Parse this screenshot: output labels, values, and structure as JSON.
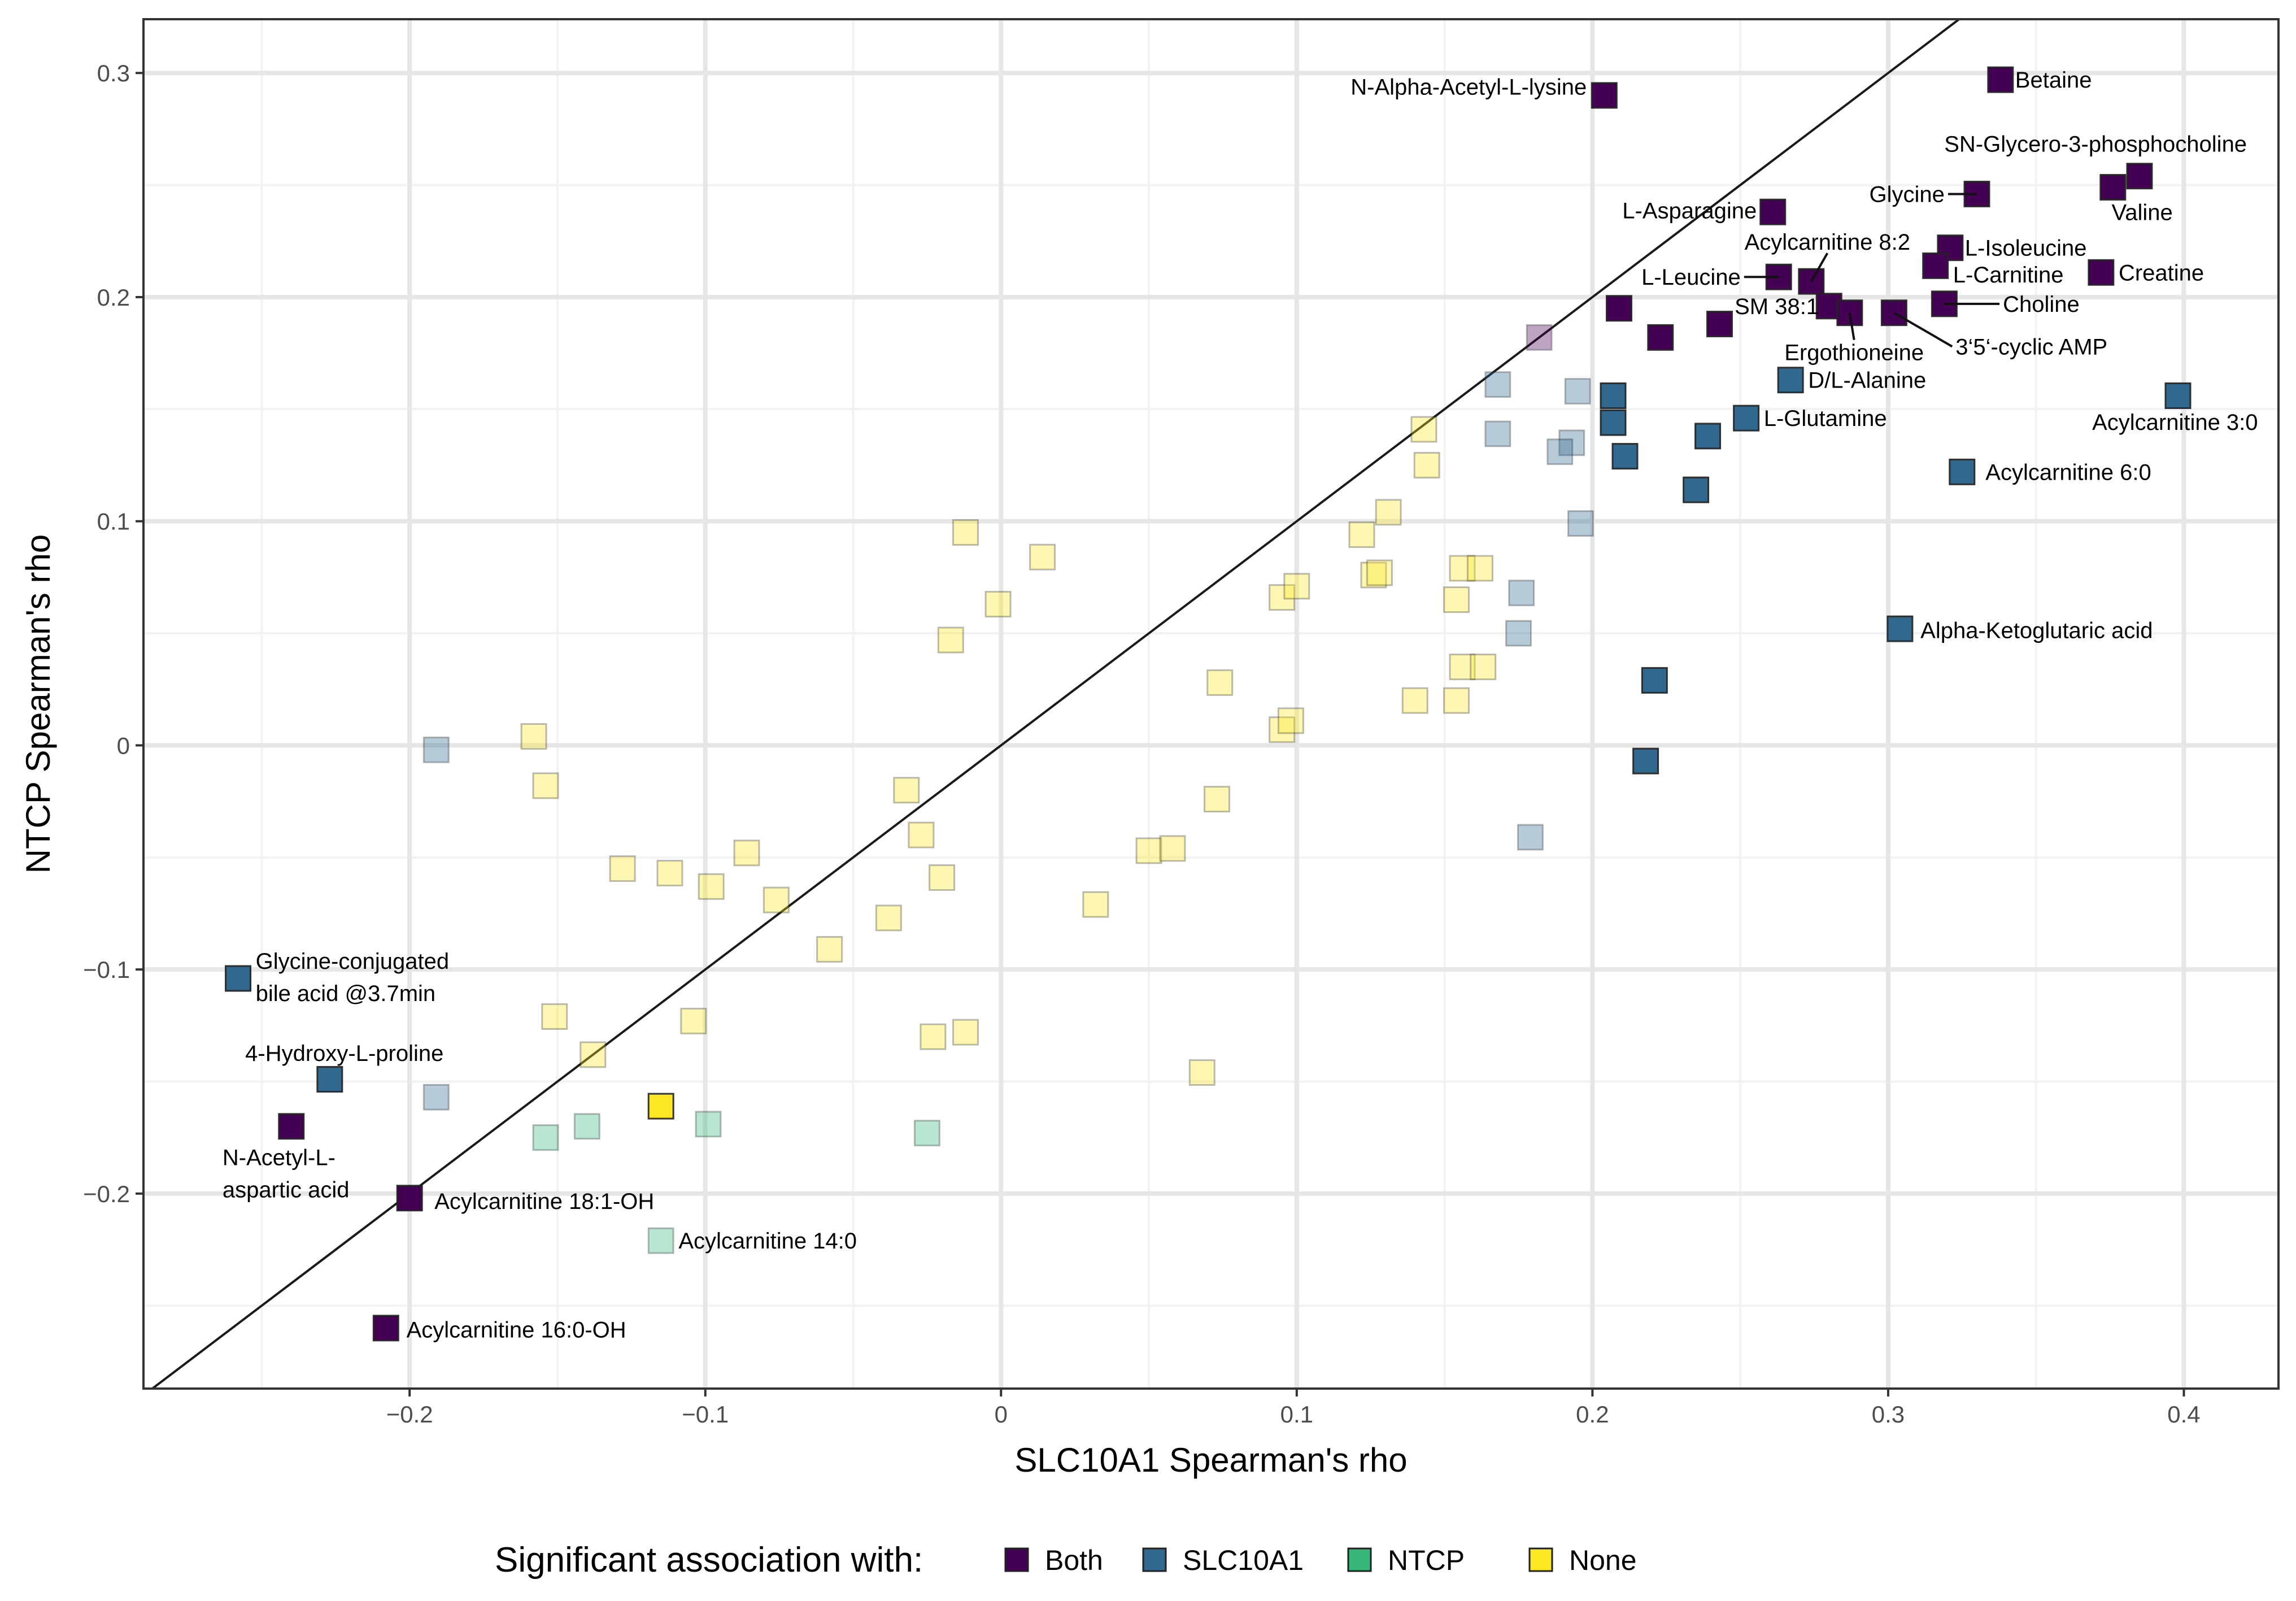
{
  "chart_data": {
    "type": "scatter",
    "title": "",
    "xlabel": "SLC10A1 Spearman's rho",
    "ylabel": "NTCP Spearman's rho",
    "xlim": [
      -0.29,
      0.432
    ],
    "ylim": [
      -0.287,
      0.324
    ],
    "x_ticks": [
      -0.2,
      -0.1,
      0,
      0.1,
      0.2,
      0.3,
      0.4
    ],
    "x_tick_labels": [
      "−0.2",
      "−0.1",
      "0",
      "0.1",
      "0.2",
      "0.3",
      "0.4"
    ],
    "y_ticks": [
      -0.2,
      -0.1,
      0,
      0.1,
      0.2,
      0.3
    ],
    "y_tick_labels": [
      "−0.2",
      "−0.1",
      "0",
      "0.1",
      "0.2",
      "0.3"
    ],
    "grid": true,
    "reference_line": "y = x",
    "legend": {
      "title": "Significant association with:",
      "placement": "bottom",
      "entries": [
        {
          "name": "Both",
          "color": "#440154"
        },
        {
          "name": "SLC10A1",
          "color": "#31688e"
        },
        {
          "name": "NTCP",
          "color": "#35b779"
        },
        {
          "name": "None",
          "color": "#fde725"
        }
      ]
    },
    "points": [
      {
        "x": 0.338,
        "y": 0.297,
        "group": "Both",
        "highlighted": true,
        "label": [
          "Betaine"
        ]
      },
      {
        "x": 0.204,
        "y": 0.29,
        "group": "Both",
        "highlighted": true,
        "label": [
          "N-Alpha-Acetyl-L-lysine"
        ]
      },
      {
        "x": 0.385,
        "y": 0.254,
        "group": "Both",
        "highlighted": true,
        "label": [
          "SN-Glycero-3-phosphocholine"
        ]
      },
      {
        "x": 0.376,
        "y": 0.249,
        "group": "Both",
        "highlighted": true,
        "label": [
          "Valine"
        ]
      },
      {
        "x": 0.33,
        "y": 0.246,
        "group": "Both",
        "highlighted": true,
        "label": [
          "Glycine"
        ]
      },
      {
        "x": 0.261,
        "y": 0.238,
        "group": "Both",
        "highlighted": true,
        "label": [
          "L-Asparagine"
        ]
      },
      {
        "x": 0.321,
        "y": 0.222,
        "group": "Both",
        "highlighted": true,
        "label": [
          "L-Isoleucine"
        ]
      },
      {
        "x": 0.316,
        "y": 0.214,
        "group": "Both",
        "highlighted": true,
        "label": [
          "L-Carnitine"
        ]
      },
      {
        "x": 0.372,
        "y": 0.211,
        "group": "Both",
        "highlighted": true,
        "label": [
          "Creatine"
        ]
      },
      {
        "x": 0.263,
        "y": 0.209,
        "group": "Both",
        "highlighted": true,
        "label": [
          "L-Leucine"
        ]
      },
      {
        "x": 0.274,
        "y": 0.207,
        "group": "Both",
        "highlighted": true,
        "label": [
          "Acylcarnitine 8:2"
        ]
      },
      {
        "x": 0.319,
        "y": 0.197,
        "group": "Both",
        "highlighted": true,
        "label": [
          "Choline"
        ]
      },
      {
        "x": 0.28,
        "y": 0.196,
        "group": "Both",
        "highlighted": true,
        "label": [
          "SM 38:1"
        ]
      },
      {
        "x": 0.287,
        "y": 0.193,
        "group": "Both",
        "highlighted": true,
        "label": [
          "Ergothioneine"
        ]
      },
      {
        "x": 0.302,
        "y": 0.193,
        "group": "Both",
        "highlighted": true,
        "label": [
          "3‘5‘-cyclic AMP"
        ]
      },
      {
        "x": 0.209,
        "y": 0.195,
        "group": "Both",
        "highlighted": true,
        "label": []
      },
      {
        "x": 0.223,
        "y": 0.182,
        "group": "Both",
        "highlighted": true,
        "label": []
      },
      {
        "x": 0.243,
        "y": 0.188,
        "group": "Both",
        "highlighted": true,
        "label": []
      },
      {
        "x": 0.182,
        "y": 0.182,
        "group": "Both",
        "highlighted": false,
        "label": []
      },
      {
        "x": -0.24,
        "y": -0.17,
        "group": "Both",
        "highlighted": true,
        "label": [
          "N-Acetyl-L-",
          "aspartic acid"
        ]
      },
      {
        "x": -0.2,
        "y": -0.202,
        "group": "Both",
        "highlighted": true,
        "label": [
          "Acylcarnitine 18:1-OH"
        ]
      },
      {
        "x": -0.208,
        "y": -0.26,
        "group": "Both",
        "highlighted": true,
        "label": [
          "Acylcarnitine 16:0-OH"
        ]
      },
      {
        "x": 0.267,
        "y": 0.163,
        "group": "SLC10A1",
        "highlighted": true,
        "label": [
          "D/L-Alanine"
        ]
      },
      {
        "x": 0.252,
        "y": 0.146,
        "group": "SLC10A1",
        "highlighted": true,
        "label": [
          "L-Glutamine"
        ]
      },
      {
        "x": 0.398,
        "y": 0.156,
        "group": "SLC10A1",
        "highlighted": true,
        "label": [
          "Acylcarnitine 3:0"
        ]
      },
      {
        "x": 0.325,
        "y": 0.122,
        "group": "SLC10A1",
        "highlighted": true,
        "label": [
          "Acylcarnitine 6:0"
        ]
      },
      {
        "x": 0.304,
        "y": 0.052,
        "group": "SLC10A1",
        "highlighted": true,
        "label": [
          "Alpha-Ketoglutaric acid"
        ]
      },
      {
        "x": -0.258,
        "y": -0.104,
        "group": "SLC10A1",
        "highlighted": true,
        "label": [
          "Glycine-conjugated",
          "bile acid @3.7min"
        ]
      },
      {
        "x": -0.227,
        "y": -0.149,
        "group": "SLC10A1",
        "highlighted": true,
        "label": [
          "4-Hydroxy-L-proline"
        ]
      },
      {
        "x": 0.207,
        "y": 0.156,
        "group": "SLC10A1",
        "highlighted": true,
        "label": []
      },
      {
        "x": 0.207,
        "y": 0.144,
        "group": "SLC10A1",
        "highlighted": true,
        "label": []
      },
      {
        "x": 0.211,
        "y": 0.129,
        "group": "SLC10A1",
        "highlighted": true,
        "label": []
      },
      {
        "x": 0.239,
        "y": 0.138,
        "group": "SLC10A1",
        "highlighted": true,
        "label": []
      },
      {
        "x": 0.235,
        "y": 0.114,
        "group": "SLC10A1",
        "highlighted": true,
        "label": []
      },
      {
        "x": 0.221,
        "y": 0.029,
        "group": "SLC10A1",
        "highlighted": true,
        "label": []
      },
      {
        "x": 0.218,
        "y": -0.007,
        "group": "SLC10A1",
        "highlighted": true,
        "label": []
      },
      {
        "x": 0.168,
        "y": 0.161,
        "group": "SLC10A1",
        "highlighted": false,
        "label": []
      },
      {
        "x": 0.195,
        "y": 0.158,
        "group": "SLC10A1",
        "highlighted": false,
        "label": []
      },
      {
        "x": 0.168,
        "y": 0.139,
        "group": "SLC10A1",
        "highlighted": false,
        "label": []
      },
      {
        "x": 0.193,
        "y": 0.135,
        "group": "SLC10A1",
        "highlighted": false,
        "label": []
      },
      {
        "x": 0.189,
        "y": 0.131,
        "group": "SLC10A1",
        "highlighted": false,
        "label": []
      },
      {
        "x": 0.196,
        "y": 0.099,
        "group": "SLC10A1",
        "highlighted": false,
        "label": []
      },
      {
        "x": 0.176,
        "y": 0.068,
        "group": "SLC10A1",
        "highlighted": false,
        "label": []
      },
      {
        "x": 0.175,
        "y": 0.05,
        "group": "SLC10A1",
        "highlighted": false,
        "label": []
      },
      {
        "x": 0.179,
        "y": -0.041,
        "group": "SLC10A1",
        "highlighted": false,
        "label": []
      },
      {
        "x": -0.191,
        "y": -0.002,
        "group": "SLC10A1",
        "highlighted": false,
        "label": []
      },
      {
        "x": -0.191,
        "y": -0.157,
        "group": "SLC10A1",
        "highlighted": false,
        "label": []
      },
      {
        "x": -0.154,
        "y": -0.175,
        "group": "NTCP",
        "highlighted": false,
        "label": []
      },
      {
        "x": -0.14,
        "y": -0.17,
        "group": "NTCP",
        "highlighted": false,
        "label": []
      },
      {
        "x": -0.099,
        "y": -0.169,
        "group": "NTCP",
        "highlighted": false,
        "label": []
      },
      {
        "x": -0.025,
        "y": -0.173,
        "group": "NTCP",
        "highlighted": false,
        "label": []
      },
      {
        "x": -0.115,
        "y": -0.221,
        "group": "NTCP",
        "highlighted": false,
        "label": [
          "Acylcarnitine 14:0"
        ]
      },
      {
        "x": -0.115,
        "y": -0.161,
        "group": "None",
        "highlighted": true,
        "label": []
      },
      {
        "x": -0.158,
        "y": 0.004,
        "group": "None",
        "highlighted": false,
        "label": []
      },
      {
        "x": -0.154,
        "y": -0.018,
        "group": "None",
        "highlighted": false,
        "label": []
      },
      {
        "x": -0.128,
        "y": -0.055,
        "group": "None",
        "highlighted": false,
        "label": []
      },
      {
        "x": -0.112,
        "y": -0.057,
        "group": "None",
        "highlighted": false,
        "label": []
      },
      {
        "x": -0.098,
        "y": -0.063,
        "group": "None",
        "highlighted": false,
        "label": []
      },
      {
        "x": -0.086,
        "y": -0.048,
        "group": "None",
        "highlighted": false,
        "label": []
      },
      {
        "x": -0.076,
        "y": -0.069,
        "group": "None",
        "highlighted": false,
        "label": []
      },
      {
        "x": -0.058,
        "y": -0.091,
        "group": "None",
        "highlighted": false,
        "label": []
      },
      {
        "x": -0.038,
        "y": -0.077,
        "group": "None",
        "highlighted": false,
        "label": []
      },
      {
        "x": -0.032,
        "y": -0.02,
        "group": "None",
        "highlighted": false,
        "label": []
      },
      {
        "x": -0.027,
        "y": -0.04,
        "group": "None",
        "highlighted": false,
        "label": []
      },
      {
        "x": -0.02,
        "y": -0.059,
        "group": "None",
        "highlighted": false,
        "label": []
      },
      {
        "x": -0.151,
        "y": -0.121,
        "group": "None",
        "highlighted": false,
        "label": []
      },
      {
        "x": -0.138,
        "y": -0.138,
        "group": "None",
        "highlighted": false,
        "label": []
      },
      {
        "x": -0.104,
        "y": -0.123,
        "group": "None",
        "highlighted": false,
        "label": []
      },
      {
        "x": -0.023,
        "y": -0.13,
        "group": "None",
        "highlighted": false,
        "label": []
      },
      {
        "x": -0.012,
        "y": -0.128,
        "group": "None",
        "highlighted": false,
        "label": []
      },
      {
        "x": -0.012,
        "y": 0.095,
        "group": "None",
        "highlighted": false,
        "label": []
      },
      {
        "x": 0.014,
        "y": 0.084,
        "group": "None",
        "highlighted": false,
        "label": []
      },
      {
        "x": -0.001,
        "y": 0.063,
        "group": "None",
        "highlighted": false,
        "label": []
      },
      {
        "x": -0.017,
        "y": 0.047,
        "group": "None",
        "highlighted": false,
        "label": []
      },
      {
        "x": 0.032,
        "y": -0.071,
        "group": "None",
        "highlighted": false,
        "label": []
      },
      {
        "x": 0.05,
        "y": -0.047,
        "group": "None",
        "highlighted": false,
        "label": []
      },
      {
        "x": 0.058,
        "y": -0.046,
        "group": "None",
        "highlighted": false,
        "label": []
      },
      {
        "x": 0.068,
        "y": -0.146,
        "group": "None",
        "highlighted": false,
        "label": []
      },
      {
        "x": 0.073,
        "y": -0.024,
        "group": "None",
        "highlighted": false,
        "label": []
      },
      {
        "x": 0.074,
        "y": 0.028,
        "group": "None",
        "highlighted": false,
        "label": []
      },
      {
        "x": 0.095,
        "y": 0.007,
        "group": "None",
        "highlighted": false,
        "label": []
      },
      {
        "x": 0.098,
        "y": 0.011,
        "group": "None",
        "highlighted": false,
        "label": []
      },
      {
        "x": 0.095,
        "y": 0.066,
        "group": "None",
        "highlighted": false,
        "label": []
      },
      {
        "x": 0.1,
        "y": 0.071,
        "group": "None",
        "highlighted": false,
        "label": []
      },
      {
        "x": 0.122,
        "y": 0.094,
        "group": "None",
        "highlighted": false,
        "label": []
      },
      {
        "x": 0.126,
        "y": 0.076,
        "group": "None",
        "highlighted": false,
        "label": []
      },
      {
        "x": 0.128,
        "y": 0.077,
        "group": "None",
        "highlighted": false,
        "label": []
      },
      {
        "x": 0.131,
        "y": 0.104,
        "group": "None",
        "highlighted": false,
        "label": []
      },
      {
        "x": 0.143,
        "y": 0.141,
        "group": "None",
        "highlighted": false,
        "label": []
      },
      {
        "x": 0.144,
        "y": 0.125,
        "group": "None",
        "highlighted": false,
        "label": []
      },
      {
        "x": 0.14,
        "y": 0.02,
        "group": "None",
        "highlighted": false,
        "label": []
      },
      {
        "x": 0.154,
        "y": 0.02,
        "group": "None",
        "highlighted": false,
        "label": []
      },
      {
        "x": 0.154,
        "y": 0.065,
        "group": "None",
        "highlighted": false,
        "label": []
      },
      {
        "x": 0.156,
        "y": 0.079,
        "group": "None",
        "highlighted": false,
        "label": []
      },
      {
        "x": 0.162,
        "y": 0.079,
        "group": "None",
        "highlighted": false,
        "label": []
      },
      {
        "x": 0.156,
        "y": 0.035,
        "group": "None",
        "highlighted": false,
        "label": []
      },
      {
        "x": 0.163,
        "y": 0.035,
        "group": "None",
        "highlighted": false,
        "label": []
      }
    ]
  }
}
